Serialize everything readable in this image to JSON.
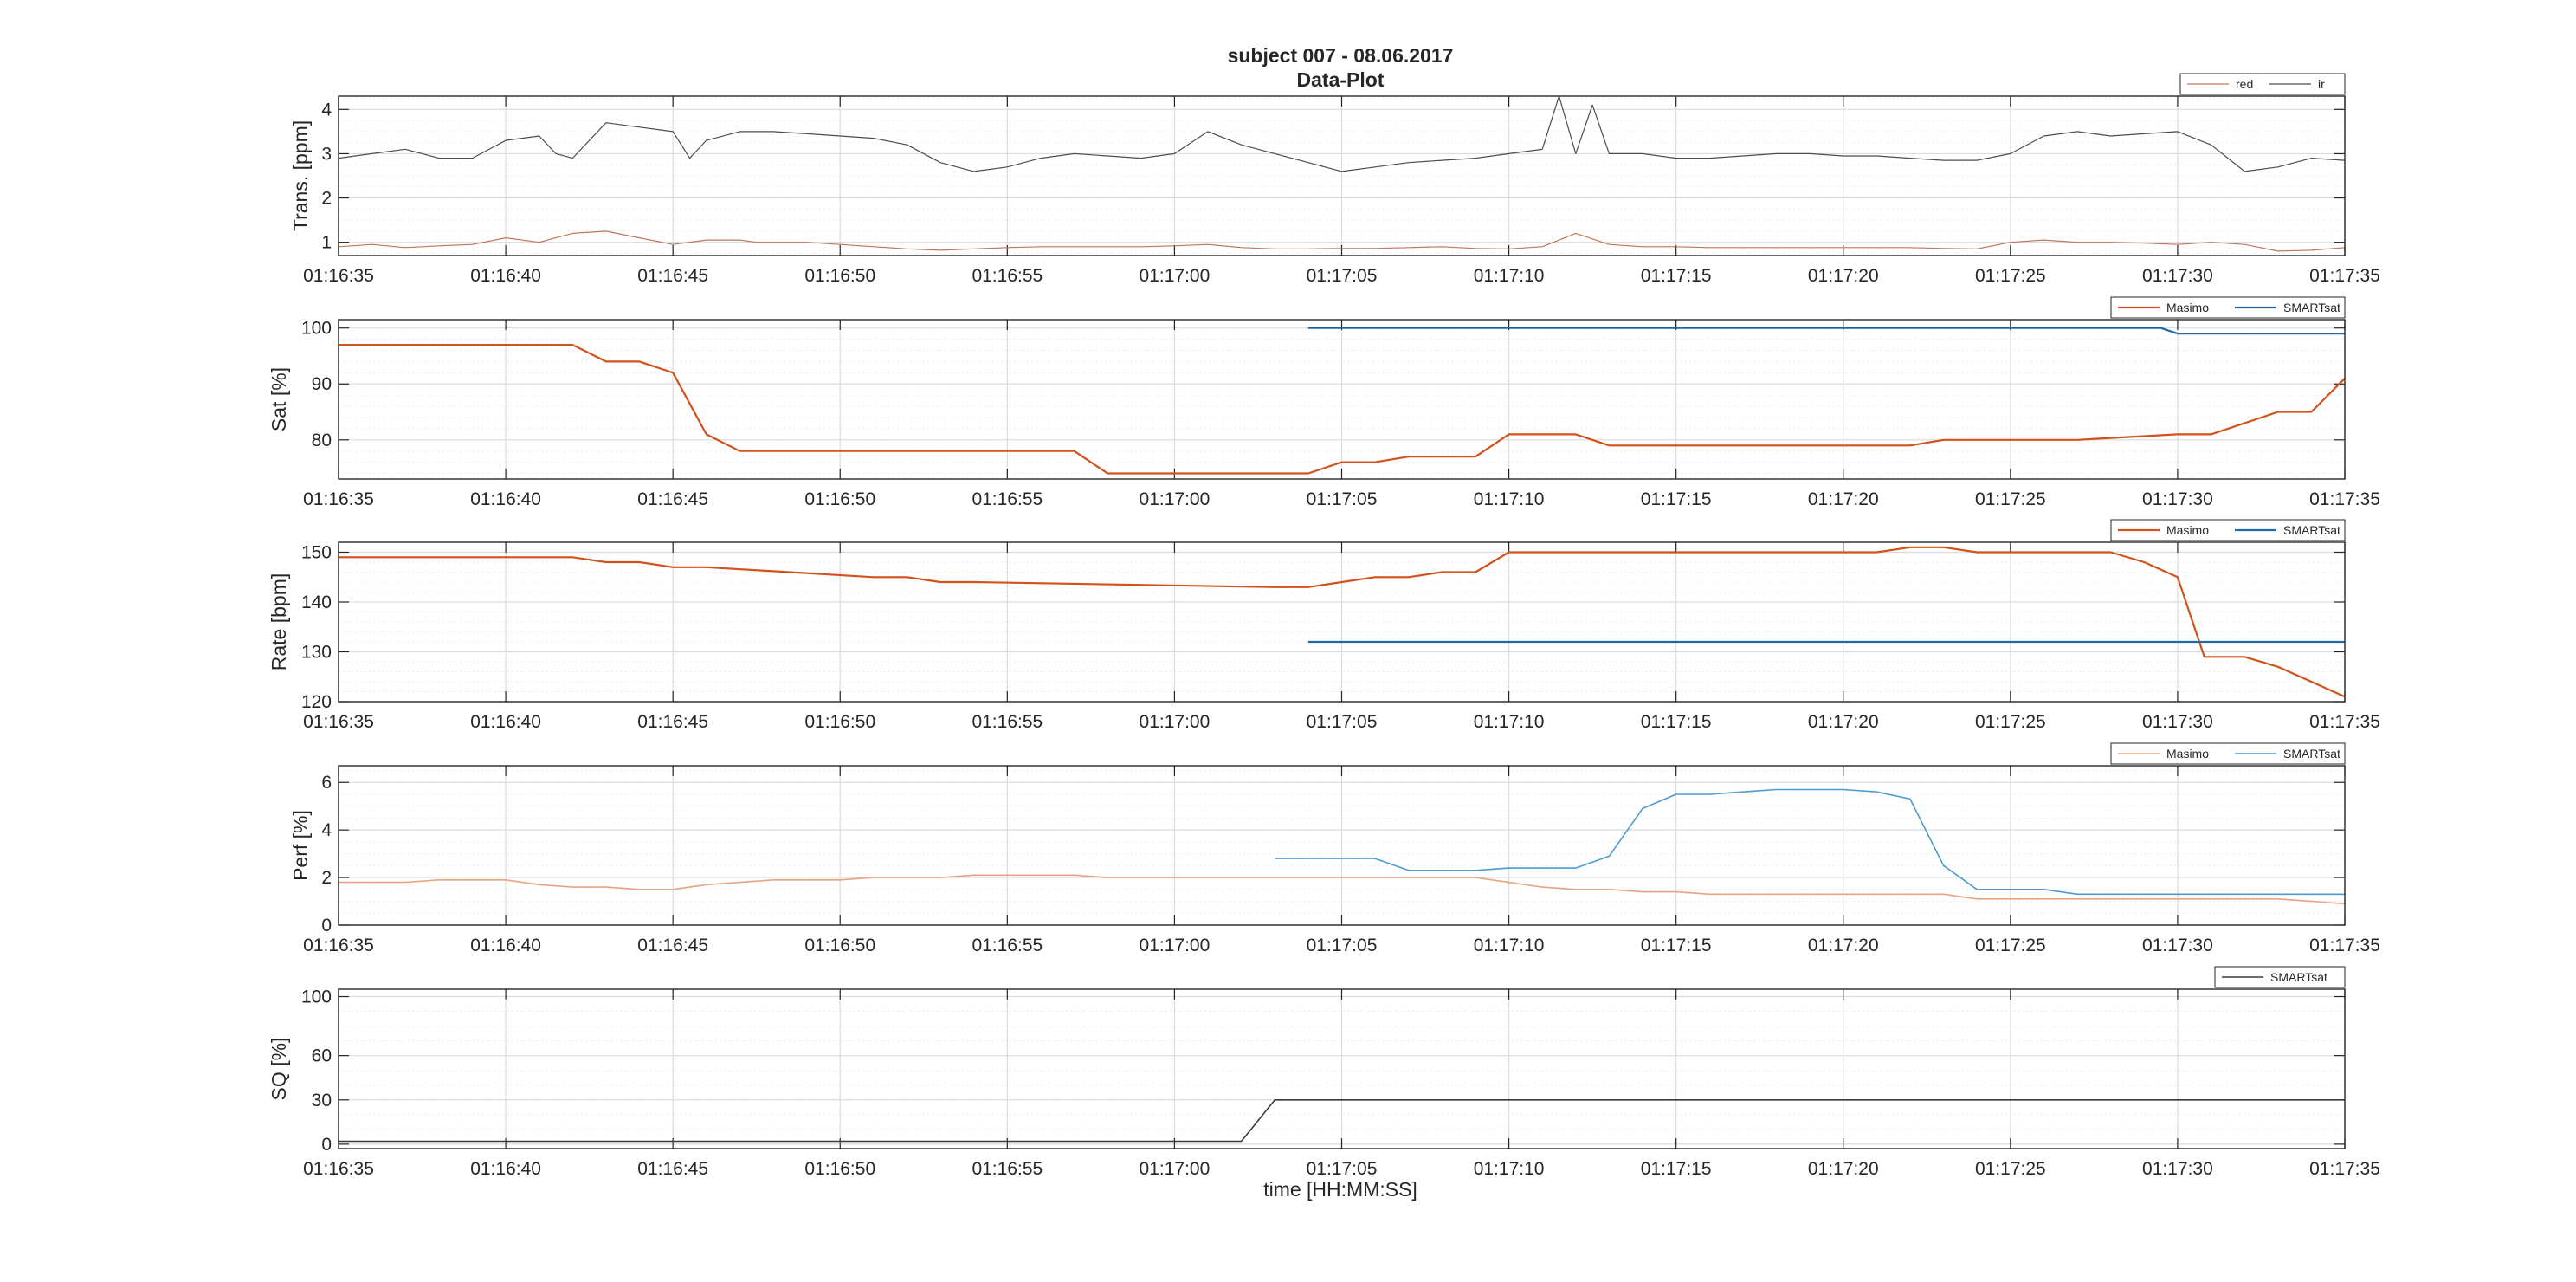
{
  "figure": {
    "title_line1": "subject 007 - 08.06.2017",
    "title_line2": "Data-Plot",
    "xlabel": "time [HH:MM:SS]"
  },
  "chart_data": [
    {
      "type": "line",
      "id": "trans",
      "ylabel": "Trans. [ppm]",
      "xlim": [
        0,
        60
      ],
      "ylim": [
        0.7,
        4.3
      ],
      "yticks": [
        1,
        2,
        3,
        4
      ],
      "x_tick_labels": [
        "01:16:35",
        "01:16:40",
        "01:16:45",
        "01:16:50",
        "01:16:55",
        "01:17:00",
        "01:17:05",
        "01:17:10",
        "01:17:15",
        "01:17:20",
        "01:17:25",
        "01:17:30",
        "01:17:35"
      ],
      "x_unit": "seconds after 01:16:35",
      "grid": true,
      "legend_position": "top-right",
      "series": [
        {
          "name": "red",
          "color": "#c0765a",
          "width": 1.2,
          "x": [
            0,
            1,
            2,
            3,
            4,
            5,
            6,
            7,
            8,
            9,
            10,
            11,
            12,
            12.5,
            13,
            14,
            15,
            16,
            17,
            18,
            19,
            20,
            21,
            22,
            23,
            24,
            25,
            26,
            27,
            28,
            29,
            30,
            31,
            32,
            33,
            34,
            35,
            36,
            37,
            38,
            39,
            40,
            41,
            42,
            43,
            44,
            45,
            46,
            47,
            48,
            49,
            50,
            51,
            52,
            53,
            54,
            55,
            56,
            57,
            58,
            59,
            60
          ],
          "y": [
            0.9,
            0.95,
            0.88,
            0.92,
            0.95,
            1.1,
            1.0,
            1.2,
            1.25,
            1.1,
            0.95,
            1.05,
            1.05,
            1.0,
            1.0,
            1.0,
            0.95,
            0.9,
            0.85,
            0.82,
            0.85,
            0.88,
            0.9,
            0.9,
            0.9,
            0.9,
            0.92,
            0.95,
            0.88,
            0.85,
            0.85,
            0.86,
            0.86,
            0.88,
            0.9,
            0.86,
            0.85,
            0.9,
            1.2,
            0.95,
            0.9,
            0.9,
            0.88,
            0.88,
            0.88,
            0.88,
            0.88,
            0.88,
            0.88,
            0.86,
            0.85,
            1.0,
            1.05,
            1.0,
            1.0,
            0.98,
            0.95,
            1.0,
            0.95,
            0.8,
            0.82,
            0.88
          ]
        },
        {
          "name": "ir",
          "color": "#4d4d4d",
          "width": 1.2,
          "x": [
            0,
            1,
            2,
            3,
            4,
            5,
            6,
            6.5,
            7,
            8,
            9,
            10,
            10.5,
            11,
            12,
            13,
            14,
            15,
            16,
            17,
            18,
            19,
            20,
            21,
            22,
            23,
            24,
            25,
            26,
            27,
            28,
            29,
            30,
            31,
            32,
            33,
            34,
            35,
            36,
            36.5,
            37,
            37.5,
            38,
            38.5,
            39,
            40,
            41,
            42,
            43,
            44,
            45,
            46,
            47,
            48,
            49,
            50,
            51,
            52,
            53,
            54,
            55,
            56,
            57,
            58,
            59,
            60
          ],
          "y": [
            2.9,
            3.0,
            3.1,
            2.9,
            2.9,
            3.3,
            3.4,
            3.0,
            2.9,
            3.7,
            3.6,
            3.5,
            2.9,
            3.3,
            3.5,
            3.5,
            3.45,
            3.4,
            3.35,
            3.2,
            2.8,
            2.6,
            2.7,
            2.9,
            3.0,
            2.95,
            2.9,
            3.0,
            3.5,
            3.2,
            3.0,
            2.8,
            2.6,
            2.7,
            2.8,
            2.85,
            2.9,
            3.0,
            3.1,
            4.3,
            3.0,
            4.1,
            3.0,
            3.0,
            3.0,
            2.9,
            2.9,
            2.95,
            3.0,
            3.0,
            2.95,
            2.95,
            2.9,
            2.85,
            2.85,
            3.0,
            3.4,
            3.5,
            3.4,
            3.45,
            3.5,
            3.2,
            2.6,
            2.7,
            2.9,
            2.85
          ]
        }
      ]
    },
    {
      "type": "line",
      "id": "sat",
      "ylabel": "Sat [%]",
      "xlim": [
        0,
        60
      ],
      "ylim": [
        73,
        101.5
      ],
      "yticks": [
        80,
        90,
        100
      ],
      "x_tick_labels": [
        "01:16:35",
        "01:16:40",
        "01:16:45",
        "01:16:50",
        "01:16:55",
        "01:17:00",
        "01:17:05",
        "01:17:10",
        "01:17:15",
        "01:17:20",
        "01:17:25",
        "01:17:30",
        "01:17:35"
      ],
      "grid": true,
      "legend_position": "top-right",
      "series": [
        {
          "name": "Masimo",
          "color": "#d2521c",
          "width": 2.2,
          "x": [
            0,
            7,
            8,
            9,
            10,
            11,
            12,
            22,
            23,
            29,
            30,
            31,
            32,
            34,
            35,
            37,
            38,
            39,
            40,
            41,
            42,
            43,
            47,
            48,
            51,
            52,
            55,
            56,
            57,
            58,
            59,
            60
          ],
          "y": [
            97,
            97,
            94,
            94,
            92,
            81,
            78,
            78,
            74,
            74,
            76,
            76,
            77,
            77,
            81,
            81,
            79,
            79,
            79,
            79,
            79,
            79,
            79,
            80,
            80,
            80,
            81,
            81,
            83,
            85,
            85,
            91
          ]
        },
        {
          "name": "SMARTsat",
          "color": "#1f6aa5",
          "width": 2.2,
          "x": [
            29,
            54.5,
            55,
            60
          ],
          "y": [
            100,
            100,
            99,
            99
          ]
        }
      ]
    },
    {
      "type": "line",
      "id": "rate",
      "ylabel": "Rate [bpm]",
      "xlim": [
        0,
        60
      ],
      "ylim": [
        120,
        152
      ],
      "yticks": [
        120,
        130,
        140,
        150
      ],
      "x_tick_labels": [
        "01:16:35",
        "01:16:40",
        "01:16:45",
        "01:16:50",
        "01:16:55",
        "01:17:00",
        "01:17:05",
        "01:17:10",
        "01:17:15",
        "01:17:20",
        "01:17:25",
        "01:17:30",
        "01:17:35"
      ],
      "grid": true,
      "legend_position": "top-right",
      "series": [
        {
          "name": "Masimo",
          "color": "#d2521c",
          "width": 2.2,
          "x": [
            0,
            6,
            7,
            8,
            9,
            10,
            11,
            16,
            17,
            18,
            19,
            28,
            29,
            30,
            31,
            32,
            33,
            34,
            35,
            46,
            47,
            48,
            49,
            53,
            54,
            55,
            55.8,
            56,
            57,
            58,
            59,
            60
          ],
          "y": [
            149,
            149,
            149,
            148,
            148,
            147,
            147,
            145,
            145,
            144,
            144,
            143,
            143,
            144,
            145,
            145,
            146,
            146,
            150,
            150,
            151,
            151,
            150,
            150,
            148,
            145,
            129,
            129,
            129,
            127,
            124,
            121
          ]
        },
        {
          "name": "SMARTsat",
          "color": "#1f6aa5",
          "width": 2.2,
          "x": [
            29,
            60
          ],
          "y": [
            132,
            132
          ]
        }
      ]
    },
    {
      "type": "line",
      "id": "perf",
      "ylabel": "Perf [%]",
      "xlim": [
        0,
        60
      ],
      "ylim": [
        0,
        6.7
      ],
      "yticks": [
        0,
        2,
        4,
        6
      ],
      "x_tick_labels": [
        "01:16:35",
        "01:16:40",
        "01:16:45",
        "01:16:50",
        "01:16:55",
        "01:17:00",
        "01:17:05",
        "01:17:10",
        "01:17:15",
        "01:17:20",
        "01:17:25",
        "01:17:30",
        "01:17:35"
      ],
      "grid": true,
      "legend_position": "top-right",
      "series": [
        {
          "name": "Masimo",
          "color": "#e8a383",
          "width": 1.6,
          "x": [
            0,
            2,
            3,
            4,
            5,
            6,
            7,
            8,
            9,
            10,
            11,
            12,
            13,
            14,
            15,
            16,
            17,
            18,
            19,
            20,
            21,
            22,
            23,
            24,
            25,
            26,
            27,
            28,
            29,
            30,
            31,
            32,
            33,
            34,
            35,
            36,
            37,
            38,
            39,
            40,
            41,
            42,
            43,
            44,
            45,
            46,
            47,
            48,
            49,
            50,
            51,
            52,
            53,
            54,
            55,
            56,
            57,
            58,
            59,
            60
          ],
          "y": [
            1.8,
            1.8,
            1.9,
            1.9,
            1.9,
            1.7,
            1.6,
            1.6,
            1.5,
            1.5,
            1.7,
            1.8,
            1.9,
            1.9,
            1.9,
            2.0,
            2.0,
            2.0,
            2.1,
            2.1,
            2.1,
            2.1,
            2.0,
            2.0,
            2.0,
            2.0,
            2.0,
            2.0,
            2.0,
            2.0,
            2.0,
            2.0,
            2.0,
            2.0,
            1.8,
            1.6,
            1.5,
            1.5,
            1.4,
            1.4,
            1.3,
            1.3,
            1.3,
            1.3,
            1.3,
            1.3,
            1.3,
            1.3,
            1.1,
            1.1,
            1.1,
            1.1,
            1.1,
            1.1,
            1.1,
            1.1,
            1.1,
            1.1,
            1.0,
            0.9
          ]
        },
        {
          "name": "SMARTsat",
          "color": "#4d9ad3",
          "width": 1.6,
          "x": [
            28,
            31,
            32,
            33,
            34,
            35,
            36,
            37,
            38,
            39,
            40,
            41,
            42,
            43,
            44,
            45,
            46,
            47,
            48,
            49,
            50,
            51,
            52,
            53,
            54,
            55,
            56,
            57,
            58,
            59,
            60
          ],
          "y": [
            2.8,
            2.8,
            2.3,
            2.3,
            2.3,
            2.4,
            2.4,
            2.4,
            2.9,
            4.9,
            5.5,
            5.5,
            5.6,
            5.7,
            5.7,
            5.7,
            5.6,
            5.3,
            2.5,
            1.5,
            1.5,
            1.5,
            1.3,
            1.3,
            1.3,
            1.3,
            1.3,
            1.3,
            1.3,
            1.3,
            1.3
          ]
        }
      ]
    },
    {
      "type": "line",
      "id": "sq",
      "ylabel": "SQ [%]",
      "xlim": [
        0,
        60
      ],
      "ylim": [
        -3,
        105
      ],
      "yticks": [
        0,
        30,
        60,
        100
      ],
      "x_tick_labels": [
        "01:16:35",
        "01:16:40",
        "01:16:45",
        "01:16:50",
        "01:16:55",
        "01:17:00",
        "01:17:05",
        "01:17:10",
        "01:17:15",
        "01:17:20",
        "01:17:25",
        "01:17:30",
        "01:17:35"
      ],
      "grid": true,
      "legend_position": "top-right",
      "series": [
        {
          "name": "SMARTsat",
          "color": "#3a3a3a",
          "width": 1.6,
          "x": [
            0,
            27,
            28,
            60
          ],
          "y": [
            2,
            2,
            30,
            30
          ]
        }
      ]
    }
  ]
}
